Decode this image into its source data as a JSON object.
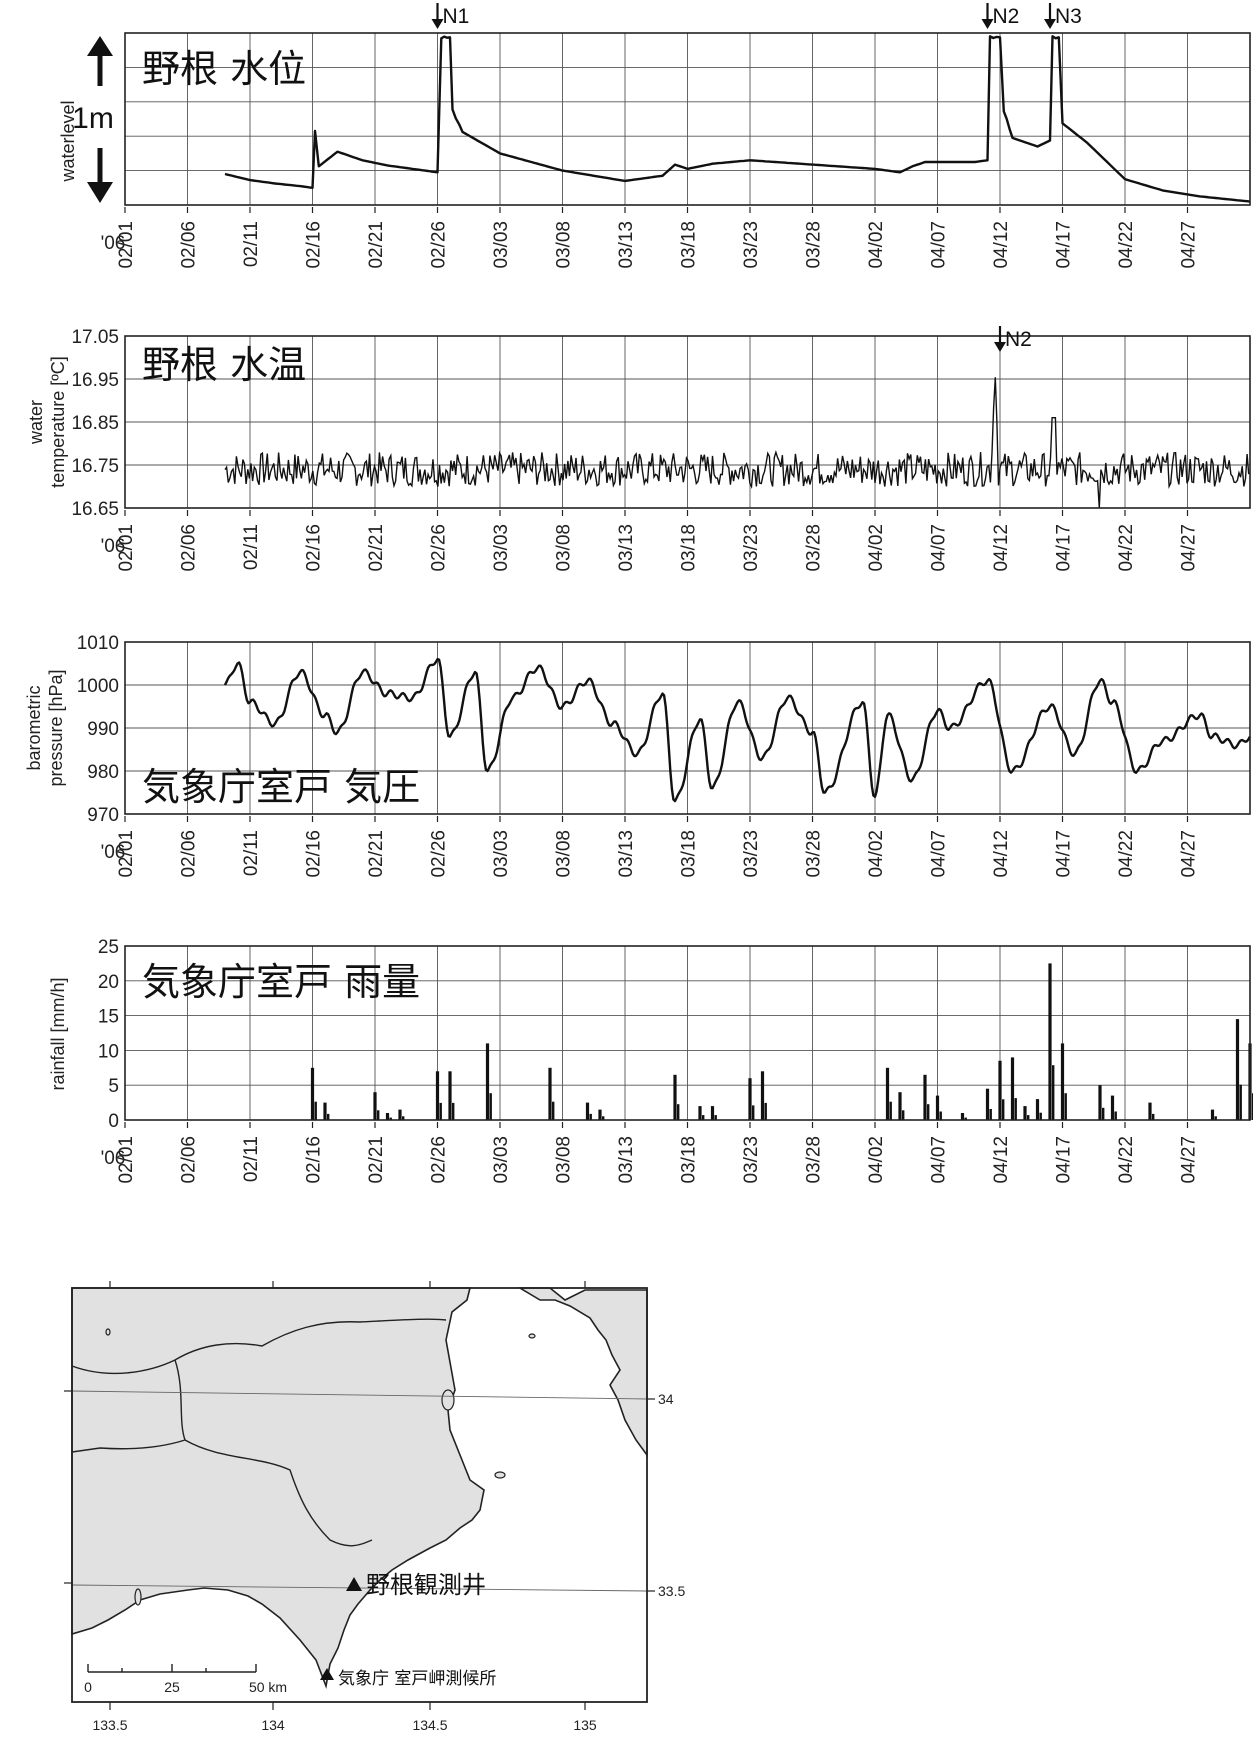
{
  "figure": {
    "date_prefix": "'06",
    "date_ticks": [
      "02/01",
      "02/06",
      "02/11",
      "02/16",
      "02/21",
      "02/26",
      "03/03",
      "03/08",
      "03/13",
      "03/18",
      "03/23",
      "03/28",
      "04/02",
      "04/07",
      "04/12",
      "04/17",
      "04/22",
      "04/27"
    ]
  },
  "chart_data": [
    {
      "type": "line",
      "title": "野根 水位",
      "ylabel": "waterlevel",
      "scale_label": "1m",
      "x_range": [
        "2006-02-01",
        "2006-05-02"
      ],
      "annotations": [
        {
          "label": "N1",
          "date": "2006-02-26"
        },
        {
          "label": "N2",
          "date": "2006-04-11"
        },
        {
          "label": "N3",
          "date": "2006-04-16"
        }
      ],
      "series": [
        {
          "values_m": [
            [
              "2006-02-09",
              0.36
            ],
            [
              "2006-02-11",
              0.29
            ],
            [
              "2006-02-13",
              0.25
            ],
            [
              "2006-02-15",
              0.22
            ],
            [
              "2006-02-16",
              0.2
            ],
            [
              "2006-02-16.2",
              0.85
            ],
            [
              "2006-02-16.5",
              0.45
            ],
            [
              "2006-02-18",
              0.62
            ],
            [
              "2006-02-20",
              0.52
            ],
            [
              "2006-02-22",
              0.46
            ],
            [
              "2006-02-24",
              0.42
            ],
            [
              "2006-02-26",
              0.38
            ],
            [
              "2006-02-26.3",
              1.95
            ],
            [
              "2006-02-27",
              1.95
            ],
            [
              "2006-02-27.2",
              1.1
            ],
            [
              "2006-02-28",
              0.85
            ],
            [
              "2006-03-03",
              0.6
            ],
            [
              "2006-03-08",
              0.4
            ],
            [
              "2006-03-13",
              0.28
            ],
            [
              "2006-03-16",
              0.34
            ],
            [
              "2006-03-17",
              0.47
            ],
            [
              "2006-03-18",
              0.42
            ],
            [
              "2006-03-20",
              0.48
            ],
            [
              "2006-03-23",
              0.52
            ],
            [
              "2006-03-28",
              0.47
            ],
            [
              "2006-04-02",
              0.42
            ],
            [
              "2006-04-04",
              0.38
            ],
            [
              "2006-04-05",
              0.45
            ],
            [
              "2006-04-06",
              0.5
            ],
            [
              "2006-04-10",
              0.5
            ],
            [
              "2006-04-11",
              0.52
            ],
            [
              "2006-04-11.2",
              1.95
            ],
            [
              "2006-04-12",
              1.95
            ],
            [
              "2006-04-12.3",
              1.1
            ],
            [
              "2006-04-13",
              0.78
            ],
            [
              "2006-04-15",
              0.68
            ],
            [
              "2006-04-16",
              0.75
            ],
            [
              "2006-04-16.2",
              1.95
            ],
            [
              "2006-04-16.7",
              1.95
            ],
            [
              "2006-04-17",
              0.95
            ],
            [
              "2006-04-19",
              0.72
            ],
            [
              "2006-04-22",
              0.3
            ],
            [
              "2006-04-25",
              0.17
            ],
            [
              "2006-04-28",
              0.1
            ],
            [
              "2006-05-02",
              0.04
            ]
          ]
        }
      ]
    },
    {
      "type": "line",
      "title": "野根 水温",
      "ylabel": "water temperature [ºC]",
      "yticks": [
        "17.05",
        "16.95",
        "16.85",
        "16.75",
        "16.65"
      ],
      "ylim": [
        16.65,
        17.05
      ],
      "annotations": [
        {
          "label": "N2",
          "date": "2006-04-12"
        }
      ],
      "series": [
        {
          "name": "",
          "baseline": 16.74,
          "range": [
            16.68,
            16.8
          ]
        }
      ]
    },
    {
      "type": "line",
      "title": "気象庁室戸 気圧",
      "ylabel": "barometric pressure [hPa]",
      "yticks": [
        "1010",
        "1000",
        "990",
        "980",
        "970"
      ],
      "ylim": [
        970,
        1010
      ],
      "series": [
        {
          "values": [
            [
              "2006-02-09",
              1000
            ],
            [
              "2006-02-10",
              1005
            ],
            [
              "2006-02-11",
              996
            ],
            [
              "2006-02-13",
              991
            ],
            [
              "2006-02-15",
              1003
            ],
            [
              "2006-02-17",
              993
            ],
            [
              "2006-02-18",
              989
            ],
            [
              "2006-02-20",
              1003
            ],
            [
              "2006-02-22",
              998
            ],
            [
              "2006-02-24",
              997
            ],
            [
              "2006-02-26",
              1006
            ],
            [
              "2006-02-27",
              988
            ],
            [
              "2006-02-29",
              1003
            ],
            [
              "2006-03-02",
              980
            ],
            [
              "2006-03-04",
              997
            ],
            [
              "2006-03-06",
              1004
            ],
            [
              "2006-03-08",
              995
            ],
            [
              "2006-03-10",
              1001
            ],
            [
              "2006-03-12",
              991
            ],
            [
              "2006-03-14",
              984
            ],
            [
              "2006-03-16",
              998
            ],
            [
              "2006-03-17",
              973
            ],
            [
              "2006-03-19",
              992
            ],
            [
              "2006-03-20",
              976
            ],
            [
              "2006-03-22",
              996
            ],
            [
              "2006-03-24",
              983
            ],
            [
              "2006-03-26",
              997
            ],
            [
              "2006-03-28",
              989
            ],
            [
              "2006-03-29",
              975
            ],
            [
              "2006-04-01",
              996
            ],
            [
              "2006-04-02",
              974
            ],
            [
              "2006-04-03",
              993
            ],
            [
              "2006-04-05",
              978
            ],
            [
              "2006-04-07",
              994
            ],
            [
              "2006-04-08",
              990
            ],
            [
              "2006-04-11",
              1001
            ],
            [
              "2006-04-13",
              980
            ],
            [
              "2006-04-16",
              995
            ],
            [
              "2006-04-18",
              984
            ],
            [
              "2006-04-20",
              1001
            ],
            [
              "2006-04-21",
              996
            ],
            [
              "2006-04-23",
              980
            ],
            [
              "2006-04-25",
              987
            ],
            [
              "2006-04-28",
              993
            ],
            [
              "2006-04-29",
              988
            ],
            [
              "2006-05-01",
              986
            ],
            [
              "2006-05-02",
              988
            ]
          ]
        }
      ]
    },
    {
      "type": "bar",
      "title": "気象庁室戸 雨量",
      "ylabel": "rainfall [mm/h]",
      "yticks": [
        "25",
        "20",
        "15",
        "10",
        "5",
        "0"
      ],
      "ylim": [
        0,
        25
      ],
      "series": [
        {
          "values": [
            [
              "2006-02-16",
              7.5
            ],
            [
              "2006-02-17",
              2.5
            ],
            [
              "2006-02-21",
              4
            ],
            [
              "2006-02-22",
              1
            ],
            [
              "2006-02-23",
              1.5
            ],
            [
              "2006-02-26",
              7
            ],
            [
              "2006-02-27",
              7
            ],
            [
              "2006-03-02",
              11
            ],
            [
              "2006-03-07",
              7.5
            ],
            [
              "2006-03-10",
              2.5
            ],
            [
              "2006-03-11",
              1.5
            ],
            [
              "2006-03-17",
              6.5
            ],
            [
              "2006-03-19",
              2
            ],
            [
              "2006-03-20",
              2
            ],
            [
              "2006-03-23",
              6
            ],
            [
              "2006-03-24",
              7
            ],
            [
              "2006-04-03",
              7.5
            ],
            [
              "2006-04-04",
              4
            ],
            [
              "2006-04-06",
              6.5
            ],
            [
              "2006-04-07",
              3.5
            ],
            [
              "2006-04-09",
              1
            ],
            [
              "2006-04-11",
              4.5
            ],
            [
              "2006-04-12",
              8.5
            ],
            [
              "2006-04-13",
              9
            ],
            [
              "2006-04-14",
              2
            ],
            [
              "2006-04-15",
              3
            ],
            [
              "2006-04-16",
              22.5
            ],
            [
              "2006-04-17",
              11
            ],
            [
              "2006-04-20",
              5
            ],
            [
              "2006-04-21",
              3.5
            ],
            [
              "2006-04-24",
              2.5
            ],
            [
              "2006-04-29",
              1.5
            ],
            [
              "2006-05-01",
              14.5
            ],
            [
              "2006-05-02",
              11
            ]
          ]
        }
      ]
    }
  ],
  "map": {
    "lon_ticks": [
      "133.5",
      "134",
      "134.5",
      "135"
    ],
    "lat_ticks": [
      "34",
      "33.5"
    ],
    "scale_ticks": [
      "0",
      "25",
      "50 km"
    ],
    "labels": {
      "well": "野根観測井",
      "station": "気象庁  室戸岬測候所"
    },
    "colors": {
      "land": "#e1e1e1",
      "water": "#ffffff",
      "outline": "#222222"
    }
  }
}
